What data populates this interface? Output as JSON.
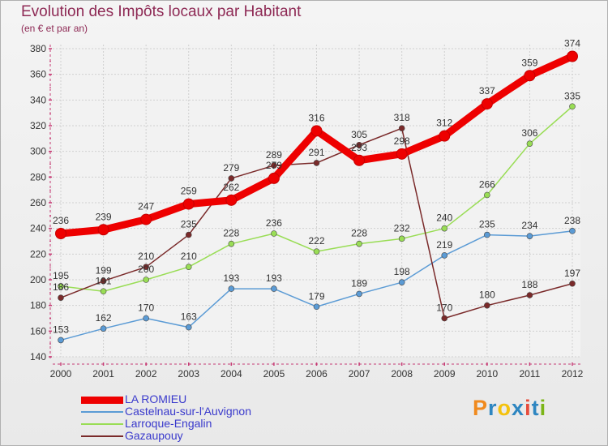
{
  "chart_data": {
    "type": "line",
    "title": "Evolution des Impôts locaux par Habitant",
    "subtitle": "(en € et par an)",
    "x": [
      "2000",
      "2001",
      "2002",
      "2003",
      "2004",
      "2005",
      "2006",
      "2007",
      "2008",
      "2009",
      "2010",
      "2011",
      "2012"
    ],
    "ylim": [
      140,
      380
    ],
    "yticks": [
      140,
      160,
      180,
      200,
      220,
      240,
      260,
      280,
      300,
      320,
      340,
      360,
      380
    ],
    "grid": true,
    "legend_position": "bottom-left",
    "series": [
      {
        "name": "LA ROMIEU",
        "color": "#ee0000",
        "emphasis": true,
        "values": [
          236,
          239,
          247,
          259,
          262,
          279,
          316,
          293,
          298,
          312,
          337,
          359,
          374
        ]
      },
      {
        "name": "Castelnau-sur-l'Auvignon",
        "color": "#5b9bd5",
        "emphasis": false,
        "values": [
          153,
          162,
          170,
          163,
          193,
          193,
          179,
          189,
          198,
          219,
          235,
          234,
          238
        ]
      },
      {
        "name": "Larroque-Engalin",
        "color": "#99dd55",
        "emphasis": false,
        "values": [
          195,
          191,
          200,
          210,
          228,
          236,
          222,
          228,
          232,
          240,
          266,
          306,
          335
        ]
      },
      {
        "name": "Gazaupouy",
        "color": "#7a2a2a",
        "emphasis": false,
        "values": [
          186,
          199,
          210,
          235,
          279,
          289,
          291,
          305,
          318,
          170,
          180,
          188,
          197
        ]
      }
    ]
  },
  "logo": {
    "text": "Proxiti",
    "colors": [
      "#f08a1e",
      "#2e86c1",
      "#f4c20d",
      "#2e86c1",
      "#e74c3c",
      "#2e86c1",
      "#7cb518"
    ]
  }
}
